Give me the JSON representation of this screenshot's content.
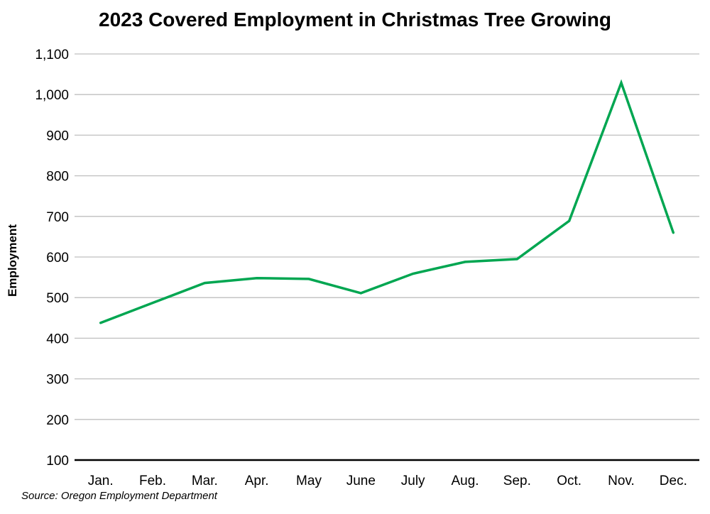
{
  "chart_data": {
    "type": "line",
    "title": "2023 Covered Employment in Christmas Tree Growing",
    "ylabel": "Employment",
    "source": "Source: Oregon Employment Department",
    "categories": [
      "Jan.",
      "Feb.",
      "Mar.",
      "Apr.",
      "May",
      "June",
      "July",
      "Aug.",
      "Sep.",
      "Oct.",
      "Nov.",
      "Dec."
    ],
    "series": [
      {
        "name": "Employment",
        "values": [
          438,
          487,
          536,
          548,
          546,
          511,
          559,
          588,
          595,
          689,
          1029,
          660
        ]
      }
    ],
    "ylim": [
      100,
      1100
    ],
    "ytick_step": 100,
    "ytick_labels": [
      "100",
      "200",
      "300",
      "400",
      "500",
      "600",
      "700",
      "800",
      "900",
      "1,000",
      "1,100"
    ],
    "grid": true,
    "legend": "none",
    "colors": {
      "line": "#00a651",
      "grid": "#bfbfbf",
      "axis": "#000000",
      "text": "#000000",
      "background": "#ffffff"
    }
  }
}
